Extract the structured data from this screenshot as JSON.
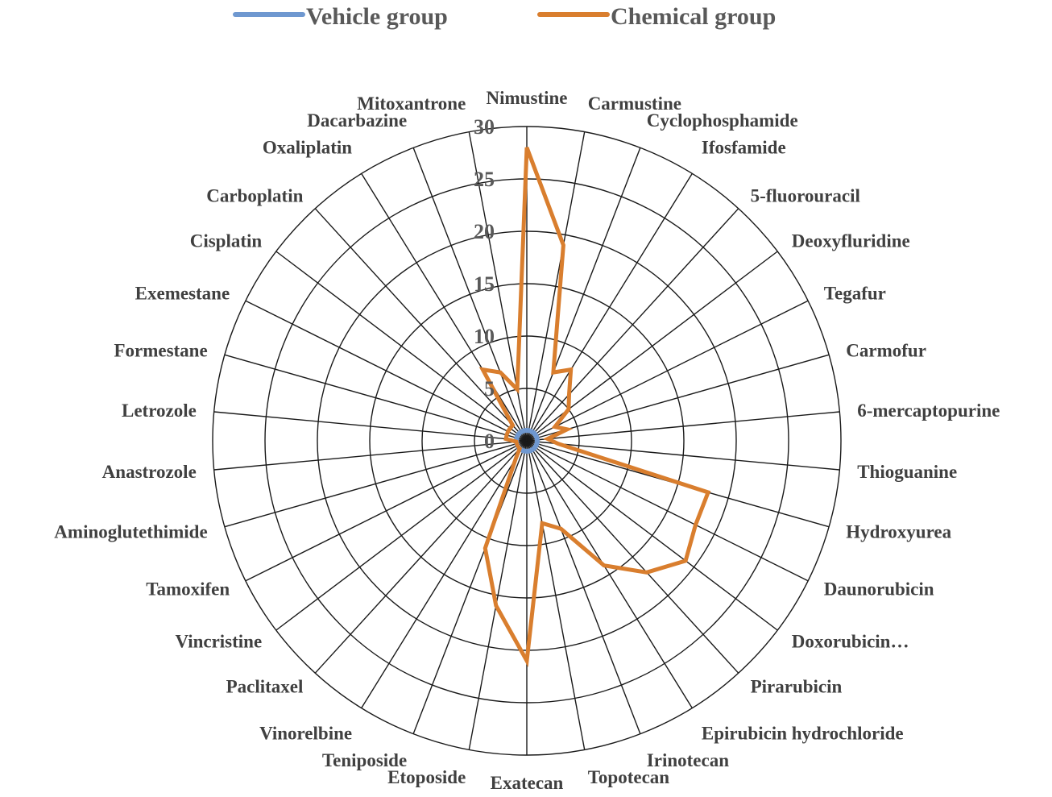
{
  "chart_data": {
    "type": "radar",
    "categories": [
      "Nimustine",
      "Carmustine",
      "Cyclophosphamide",
      "Ifosfamide",
      "5-fluorouracil",
      "Deoxyfluridine",
      "Tegafur",
      "Carmofur",
      "6-mercaptopurine",
      "Thioguanine",
      "Hydroxyurea",
      "Daunorubicin",
      "Doxorubicin…",
      "Pirarubicin",
      "Epirubicin hydrochloride",
      "Irinotecan",
      "Topotecan",
      "Exatecan",
      "Etoposide",
      "Teniposide",
      "Vinorelbine",
      "Paclitaxel",
      "Vincristine",
      "Tamoxifen",
      "Aminoglutethimide",
      "Anastrozole",
      "Letrozole",
      "Formestane",
      "Exemestane",
      "Cisplatin",
      "Carboplatin",
      "Oxaliplatin",
      "Dacarbazine",
      "Mitoxantrone"
    ],
    "series": [
      {
        "name": "Vehicle group",
        "color": "#6f98d0",
        "values": [
          1,
          1,
          1,
          1,
          1,
          1,
          1,
          1,
          1,
          1,
          1,
          1,
          1,
          1,
          1,
          1,
          1,
          1,
          1,
          1,
          1,
          1,
          1,
          1,
          1,
          1,
          1,
          1,
          1,
          1,
          1,
          1,
          1,
          1
        ]
      },
      {
        "name": "Chemical group",
        "color": "#d97e2e",
        "values": [
          28,
          19,
          7,
          8,
          6,
          5,
          3,
          4,
          2,
          3,
          18,
          18,
          19,
          17,
          14,
          9,
          8,
          21,
          16,
          11,
          2,
          1,
          1,
          1,
          1,
          1,
          2,
          2,
          2,
          2,
          2,
          8,
          7,
          5
        ]
      }
    ],
    "axis_ticks": [
      "0",
      "5",
      "10",
      "15",
      "20",
      "25",
      "30"
    ],
    "rmin": 0,
    "rmax": 30,
    "legend_position": "top",
    "grid": true
  }
}
